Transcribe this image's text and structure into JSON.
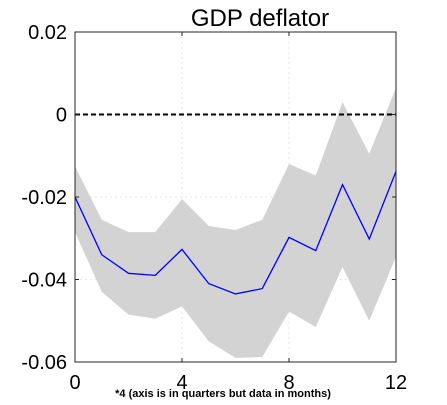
{
  "chart_data": {
    "type": "line",
    "title": "GDP deflator",
    "xlabel": "*4 (axis is in quarters but data in months)",
    "ylabel": "",
    "x": [
      0,
      1,
      2,
      3,
      4,
      5,
      6,
      7,
      8,
      9,
      10,
      11,
      12
    ],
    "series": [
      {
        "values": [
          -0.02,
          -0.034,
          -0.0385,
          -0.039,
          -0.0327,
          -0.041,
          -0.0435,
          -0.0422,
          -0.0298,
          -0.033,
          -0.017,
          -0.0302,
          -0.0138
        ]
      }
    ],
    "band": {
      "upper": [
        -0.0125,
        -0.0255,
        -0.0285,
        -0.0285,
        -0.0205,
        -0.027,
        -0.028,
        -0.0255,
        -0.012,
        -0.0148,
        0.003,
        -0.0095,
        0.0065
      ],
      "lower": [
        -0.0285,
        -0.043,
        -0.0485,
        -0.0495,
        -0.0465,
        -0.055,
        -0.059,
        -0.0588,
        -0.0478,
        -0.0515,
        -0.037,
        -0.05,
        -0.0345
      ]
    },
    "zero_line": 0,
    "xlim": [
      0,
      12
    ],
    "ylim": [
      -0.06,
      0.02
    ],
    "xticks": [
      0,
      4,
      8,
      12
    ],
    "xtick_labels": [
      "0",
      "4",
      "8",
      "12"
    ],
    "yticks": [
      0.02,
      0,
      -0.02,
      -0.04,
      -0.06
    ],
    "ytick_labels": [
      "0.02",
      "0",
      "-0.02",
      "-0.04",
      "-0.06"
    ],
    "grid": true,
    "colors": {
      "line": "#0000ff",
      "band": "#d3d3d3",
      "zero": "#000000",
      "grid": "#e6e6e6"
    }
  }
}
